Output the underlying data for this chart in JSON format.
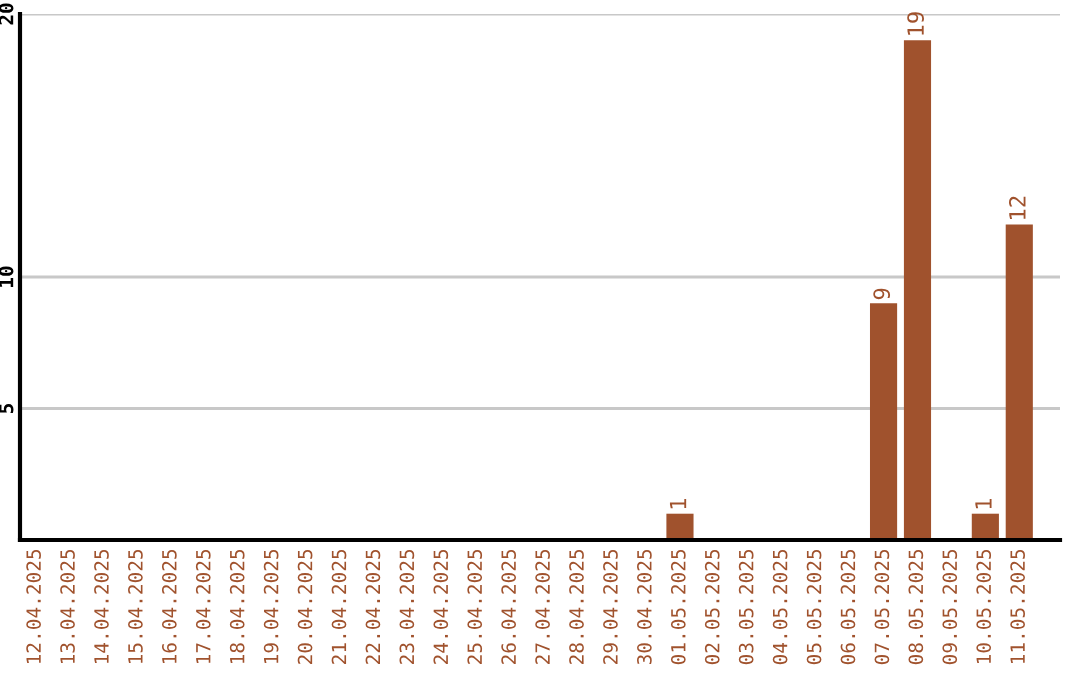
{
  "chart_data": {
    "type": "bar",
    "categories": [
      "12.04.2025",
      "13.04.2025",
      "14.04.2025",
      "15.04.2025",
      "16.04.2025",
      "17.04.2025",
      "18.04.2025",
      "19.04.2025",
      "20.04.2025",
      "21.04.2025",
      "22.04.2025",
      "23.04.2025",
      "24.04.2025",
      "25.04.2025",
      "26.04.2025",
      "27.04.2025",
      "28.04.2025",
      "29.04.2025",
      "30.04.2025",
      "01.05.2025",
      "02.05.2025",
      "03.05.2025",
      "04.05.2025",
      "05.05.2025",
      "06.05.2025",
      "07.05.2025",
      "08.05.2025",
      "09.05.2025",
      "10.05.2025",
      "11.05.2025"
    ],
    "values": [
      0,
      0,
      0,
      0,
      0,
      0,
      0,
      0,
      0,
      0,
      0,
      0,
      0,
      0,
      0,
      0,
      0,
      0,
      0,
      1,
      0,
      0,
      0,
      0,
      0,
      9,
      19,
      0,
      1,
      12
    ],
    "value_labels": [
      null,
      null,
      null,
      null,
      null,
      null,
      null,
      null,
      null,
      null,
      null,
      null,
      null,
      null,
      null,
      null,
      null,
      null,
      null,
      "1",
      null,
      null,
      null,
      null,
      null,
      "9",
      "19",
      null,
      "1",
      "12"
    ],
    "color": "#a0522d",
    "ylim": [
      0,
      20
    ],
    "yticks": [
      5,
      10,
      20
    ],
    "grid": "y"
  }
}
